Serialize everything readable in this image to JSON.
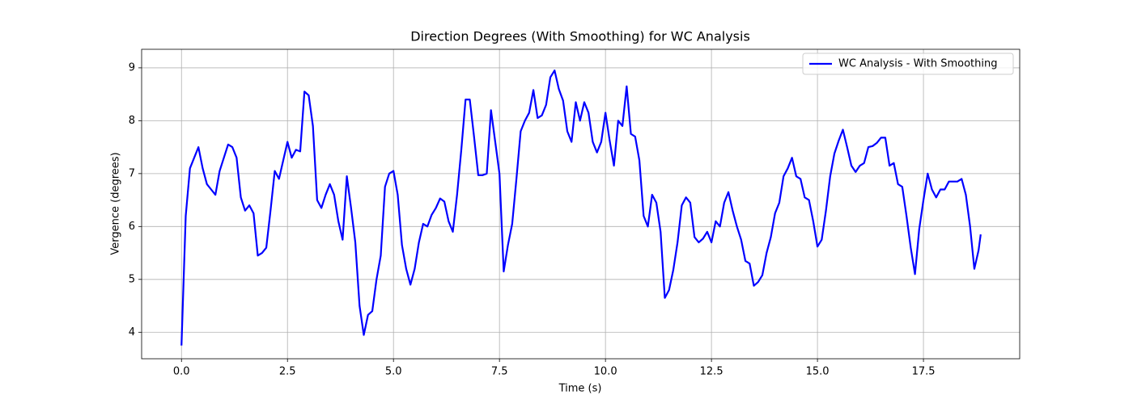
{
  "chart_data": {
    "type": "line",
    "title": "Direction Degrees (With Smoothing) for WC Analysis",
    "xlabel": "Time (s)",
    "ylabel": "Vergence (degrees)",
    "x": [
      0.0,
      0.1,
      0.2,
      0.3,
      0.4,
      0.5,
      0.6,
      0.7,
      0.8,
      0.9,
      1.0,
      1.1,
      1.2,
      1.3,
      1.4,
      1.5,
      1.6,
      1.7,
      1.8,
      1.9,
      2.0,
      2.1,
      2.2,
      2.3,
      2.4,
      2.5,
      2.6,
      2.7,
      2.8,
      2.9,
      3.0,
      3.1,
      3.2,
      3.3,
      3.4,
      3.5,
      3.6,
      3.7,
      3.8,
      3.9,
      4.0,
      4.1,
      4.2,
      4.3,
      4.4,
      4.5,
      4.6,
      4.7,
      4.8,
      4.9,
      5.0,
      5.1,
      5.2,
      5.3,
      5.4,
      5.5,
      5.6,
      5.7,
      5.8,
      5.9,
      6.0,
      6.1,
      6.2,
      6.3,
      6.4,
      6.5,
      6.6,
      6.7,
      6.8,
      6.9,
      7.0,
      7.1,
      7.2,
      7.3,
      7.4,
      7.5,
      7.6,
      7.7,
      7.8,
      7.9,
      8.0,
      8.1,
      8.2,
      8.3,
      8.4,
      8.5,
      8.6,
      8.7,
      8.8,
      8.9,
      9.0,
      9.1,
      9.2,
      9.3,
      9.4,
      9.5,
      9.6,
      9.7,
      9.8,
      9.9,
      10.0,
      10.1,
      10.2,
      10.3,
      10.4,
      10.5,
      10.6,
      10.7,
      10.8,
      10.9,
      11.0,
      11.1,
      11.2,
      11.3,
      11.4,
      11.5,
      11.6,
      11.7,
      11.8,
      11.9,
      12.0,
      12.1,
      12.2,
      12.3,
      12.4,
      12.5,
      12.6,
      12.7,
      12.8,
      12.9,
      13.0,
      13.1,
      13.2,
      13.3,
      13.4,
      13.5,
      13.6,
      13.7,
      13.8,
      13.9,
      14.0,
      14.1,
      14.2,
      14.3,
      14.4,
      14.5,
      14.6,
      14.7,
      14.8,
      14.9,
      15.0,
      15.1,
      15.2,
      15.3,
      15.4,
      15.5,
      15.6,
      15.7,
      15.8,
      15.9,
      16.0,
      16.1,
      16.2,
      16.3,
      16.4,
      16.5,
      16.6,
      16.7,
      16.8,
      16.9,
      17.0,
      17.1,
      17.2,
      17.3,
      17.4,
      17.5,
      17.6,
      17.7,
      17.8,
      17.9,
      18.0,
      18.1,
      18.2,
      18.3,
      18.4,
      18.5,
      18.6,
      18.7,
      18.8,
      18.85
    ],
    "series": [
      {
        "name": "WC Analysis - With Smoothing",
        "color": "#0000ff",
        "values": [
          3.75,
          6.2,
          7.1,
          7.3,
          7.5,
          7.1,
          6.8,
          6.7,
          6.6,
          7.05,
          7.3,
          7.55,
          7.5,
          7.3,
          6.55,
          6.3,
          6.4,
          6.25,
          5.45,
          5.5,
          5.6,
          6.3,
          7.05,
          6.9,
          7.25,
          7.6,
          7.3,
          7.45,
          7.42,
          8.55,
          8.48,
          7.9,
          6.5,
          6.35,
          6.6,
          6.8,
          6.6,
          6.1,
          5.75,
          6.95,
          6.35,
          5.7,
          4.5,
          3.95,
          4.33,
          4.4,
          5.0,
          5.45,
          6.75,
          7.0,
          7.05,
          6.6,
          5.65,
          5.2,
          4.9,
          5.2,
          5.7,
          6.05,
          6.0,
          6.22,
          6.35,
          6.53,
          6.47,
          6.1,
          5.9,
          6.6,
          7.45,
          8.4,
          8.4,
          7.7,
          6.97,
          6.97,
          7.0,
          8.2,
          7.6,
          7.0,
          5.15,
          5.65,
          6.05,
          6.9,
          7.8,
          8.0,
          8.15,
          8.58,
          8.05,
          8.1,
          8.3,
          8.82,
          8.95,
          8.6,
          8.38,
          7.8,
          7.6,
          8.35,
          8.0,
          8.35,
          8.15,
          7.6,
          7.4,
          7.6,
          8.15,
          7.62,
          7.15,
          8.0,
          7.9,
          8.65,
          7.75,
          7.7,
          7.25,
          6.2,
          6.0,
          6.6,
          6.45,
          5.9,
          4.65,
          4.8,
          5.18,
          5.7,
          6.4,
          6.55,
          6.45,
          5.8,
          5.7,
          5.77,
          5.9,
          5.7,
          6.1,
          6.0,
          6.45,
          6.65,
          6.3,
          6.0,
          5.75,
          5.35,
          5.3,
          4.88,
          4.95,
          5.08,
          5.5,
          5.8,
          6.25,
          6.45,
          6.95,
          7.1,
          7.3,
          6.95,
          6.9,
          6.55,
          6.5,
          6.1,
          5.62,
          5.75,
          6.3,
          6.95,
          7.38,
          7.62,
          7.83,
          7.5,
          7.15,
          7.03,
          7.15,
          7.2,
          7.5,
          7.52,
          7.58,
          7.68,
          7.68,
          7.15,
          7.2,
          6.8,
          6.75,
          6.2,
          5.6,
          5.1,
          5.95,
          6.5,
          7.0,
          6.7,
          6.55,
          6.7,
          6.7,
          6.85,
          6.85,
          6.85,
          6.9,
          6.6,
          6.0,
          5.2,
          5.55,
          5.85
        ]
      }
    ],
    "xlim": [
      -0.94,
      19.77
    ],
    "ylim": [
      3.5,
      9.35
    ],
    "xticks": [
      {
        "value": 0,
        "label": "0.0"
      },
      2.5,
      {
        "value": 5,
        "label": "5.0"
      },
      7.5,
      {
        "value": 10,
        "label": "10.0"
      },
      12.5,
      {
        "value": 15,
        "label": "15.0"
      },
      17.5
    ],
    "yticks": [
      4,
      5,
      6,
      7,
      8,
      9
    ],
    "grid": true,
    "legend": "upper right"
  }
}
